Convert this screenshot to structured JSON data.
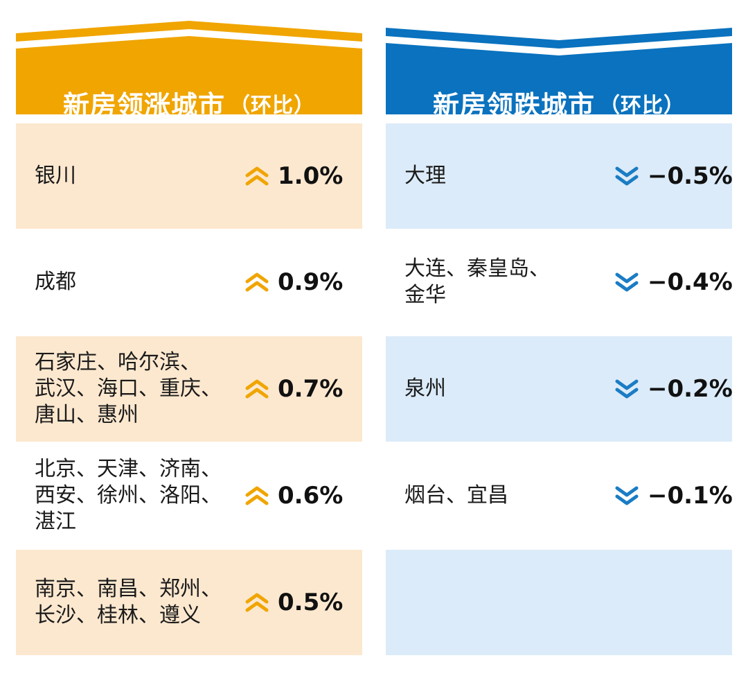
{
  "rise": {
    "title_main": "新房领涨城市",
    "title_suffix": "（环比）",
    "colors": {
      "header": "#F0A500",
      "row_fill": "#FCE8CF",
      "arrow": "#F0A500"
    },
    "rows": [
      {
        "lines": [
          "银川"
        ],
        "value": "1.0%"
      },
      {
        "lines": [
          "成都"
        ],
        "value": "0.9%"
      },
      {
        "lines": [
          "石家庄、哈尔滨、",
          "武汉、海口、重庆、",
          "唐山、惠州"
        ],
        "value": "0.7%"
      },
      {
        "lines": [
          "北京、天津、济南、",
          "西安、徐州、洛阳、",
          "湛江"
        ],
        "value": "0.6%"
      },
      {
        "lines": [
          "南京、南昌、郑州、",
          "长沙、桂林、遵义"
        ],
        "value": "0.5%"
      }
    ]
  },
  "fall": {
    "title_main": "新房领跌城市",
    "title_suffix": "（环比）",
    "colors": {
      "header": "#0A72BE",
      "row_fill": "#DCEBF9",
      "arrow": "#1B7CC4"
    },
    "rows": [
      {
        "lines": [
          "大理"
        ],
        "value": "−0.5%"
      },
      {
        "lines": [
          "大连、秦皇岛、",
          "金华"
        ],
        "value": "−0.4%"
      },
      {
        "lines": [
          "泉州"
        ],
        "value": "−0.2%"
      },
      {
        "lines": [
          "烟台、宜昌"
        ],
        "value": "−0.1%"
      },
      {
        "lines": [],
        "value": ""
      }
    ]
  }
}
